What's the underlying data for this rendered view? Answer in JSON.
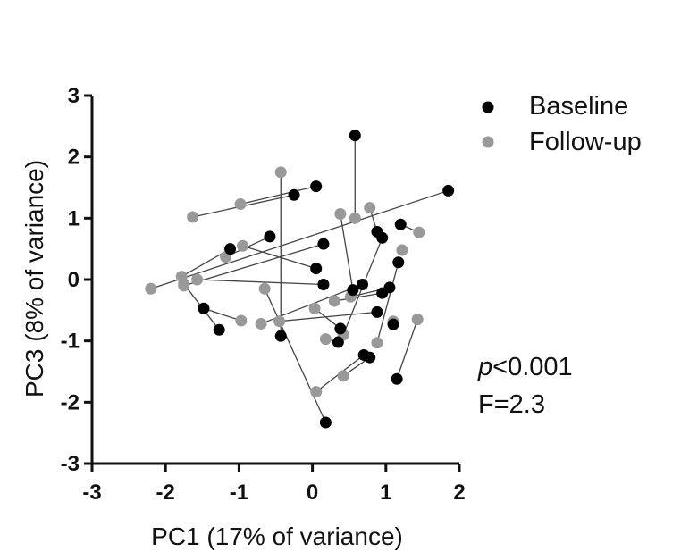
{
  "chart_data": {
    "type": "scatter",
    "xlabel": "PC1 (17% of variance)",
    "ylabel": "PC3 (8% of variance)",
    "xlim": [
      -3,
      2
    ],
    "ylim": [
      -3,
      3
    ],
    "xticks": [
      -3,
      -2,
      -1,
      0,
      1,
      2
    ],
    "yticks": [
      -3,
      -2,
      -1,
      0,
      1,
      2,
      3
    ],
    "grid": false,
    "legend_position": "top-right",
    "colors": {
      "baseline": "#000000",
      "followup": "#999999",
      "line": "#444444"
    },
    "series": [
      {
        "name": "Baseline",
        "color": "#000000"
      },
      {
        "name": "Follow-up",
        "color": "#999999"
      }
    ],
    "pairs": [
      {
        "baseline": [
          0.58,
          2.35
        ],
        "followup": [
          0.58,
          1.0
        ]
      },
      {
        "baseline": [
          1.85,
          1.45
        ],
        "followup": [
          -2.2,
          -0.15
        ]
      },
      {
        "baseline": [
          0.05,
          1.52
        ],
        "followup": [
          -0.98,
          1.23
        ]
      },
      {
        "baseline": [
          -0.25,
          1.38
        ],
        "followup": [
          -1.63,
          1.02
        ]
      },
      {
        "baseline": [
          -0.58,
          0.7
        ],
        "followup": [
          -1.18,
          0.37
        ]
      },
      {
        "baseline": [
          -1.12,
          0.5
        ],
        "followup": [
          -1.78,
          0.05
        ]
      },
      {
        "baseline": [
          0.15,
          0.58
        ],
        "followup": [
          -1.75,
          -0.1
        ]
      },
      {
        "baseline": [
          0.05,
          0.18
        ],
        "followup": [
          -0.95,
          0.55
        ]
      },
      {
        "baseline": [
          0.15,
          -0.08
        ],
        "followup": [
          -1.57,
          0.0
        ]
      },
      {
        "baseline": [
          -1.48,
          -0.47
        ],
        "followup": [
          -0.97,
          -0.67
        ]
      },
      {
        "baseline": [
          -1.27,
          -0.82
        ],
        "followup": [
          -1.75,
          -0.07
        ]
      },
      {
        "baseline": [
          -0.43,
          -0.92
        ],
        "followup": [
          -0.43,
          1.75
        ]
      },
      {
        "baseline": [
          0.18,
          -2.33
        ],
        "followup": [
          -0.65,
          -0.15
        ]
      },
      {
        "baseline": [
          0.35,
          -1.02
        ],
        "followup": [
          0.18,
          -0.97
        ]
      },
      {
        "baseline": [
          0.38,
          -0.8
        ],
        "followup": [
          0.03,
          -0.47
        ]
      },
      {
        "baseline": [
          0.68,
          -0.08
        ],
        "followup": [
          -0.7,
          -0.72
        ]
      },
      {
        "baseline": [
          0.55,
          -0.17
        ],
        "followup": [
          0.38,
          1.07
        ]
      },
      {
        "baseline": [
          0.88,
          0.78
        ],
        "followup": [
          0.78,
          1.17
        ]
      },
      {
        "baseline": [
          0.95,
          0.68
        ],
        "followup": [
          0.42,
          -0.9
        ]
      },
      {
        "baseline": [
          0.88,
          -0.53
        ],
        "followup": [
          -0.45,
          -0.68
        ]
      },
      {
        "baseline": [
          0.95,
          -0.22
        ],
        "followup": [
          0.3,
          -0.35
        ]
      },
      {
        "baseline": [
          1.05,
          -0.13
        ],
        "followup": [
          0.52,
          -0.28
        ]
      },
      {
        "baseline": [
          1.17,
          0.28
        ],
        "followup": [
          0.88,
          -1.03
        ]
      },
      {
        "baseline": [
          1.2,
          0.9
        ],
        "followup": [
          1.45,
          0.77
        ]
      },
      {
        "baseline": [
          1.1,
          -0.73
        ],
        "followup": [
          1.1,
          -0.68
        ]
      },
      {
        "baseline": [
          1.15,
          -1.62
        ],
        "followup": [
          1.43,
          -0.65
        ]
      },
      {
        "baseline": [
          0.7,
          -1.23
        ],
        "followup": [
          0.05,
          -1.83
        ]
      },
      {
        "baseline": [
          0.78,
          -1.27
        ],
        "followup": [
          0.42,
          -1.57
        ]
      }
    ],
    "unpaired_baseline": [],
    "unpaired_followup": [
      [
        1.22,
        0.48
      ]
    ],
    "annotations": [
      {
        "text": "p",
        "italic": true
      },
      {
        "text": "<0.001"
      },
      {
        "text": "F=2.3"
      }
    ]
  }
}
